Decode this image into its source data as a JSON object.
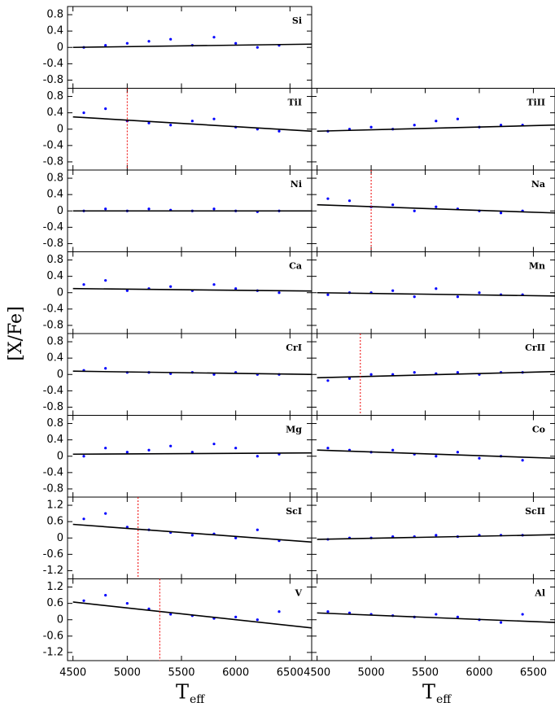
{
  "ylabel": "[X/Fe]",
  "xlabel": {
    "base": "T",
    "sub": "eff"
  },
  "chart_data": [
    {
      "type": "scatter",
      "label": "Si",
      "color": "#0000ff",
      "xlim": [
        4450,
        6700
      ],
      "ylim": [
        -1,
        1
      ],
      "xticks": [
        4500,
        5000,
        5500,
        6000,
        6500
      ],
      "yticks": [
        -0.8,
        -0.4,
        0,
        0.4,
        0.8
      ],
      "x": [
        4600,
        4800,
        5000,
        5200,
        5400,
        5600,
        5800,
        6000,
        6200,
        6400
      ],
      "y": [
        0.0,
        0.05,
        0.1,
        0.15,
        0.2,
        0.05,
        0.25,
        0.1,
        0.0,
        0.05
      ],
      "fit": {
        "x": [
          4500,
          6700
        ],
        "y": [
          0.0,
          0.08
        ]
      }
    },
    {
      "type": "scatter",
      "label": "TiI",
      "color": "#0000ff",
      "xlim": [
        4450,
        6700
      ],
      "ylim": [
        -1,
        1
      ],
      "xticks": [
        4500,
        5000,
        5500,
        6000,
        6500
      ],
      "yticks": [
        -0.8,
        -0.4,
        0,
        0.4,
        0.8
      ],
      "x": [
        4600,
        4800,
        5000,
        5200,
        5400,
        5600,
        5800,
        6000,
        6200,
        6400
      ],
      "y": [
        0.4,
        0.5,
        0.2,
        0.15,
        0.1,
        0.2,
        0.25,
        0.05,
        0.0,
        -0.05
      ],
      "fit": {
        "x": [
          4500,
          6700
        ],
        "y": [
          0.3,
          -0.05
        ]
      },
      "vline": 5000
    },
    {
      "type": "scatter",
      "label": "Ni",
      "color": "#0000ff",
      "xlim": [
        4450,
        6700
      ],
      "ylim": [
        -1,
        1
      ],
      "xticks": [
        4500,
        5000,
        5500,
        6000,
        6500
      ],
      "yticks": [
        -0.8,
        -0.4,
        0,
        0.4,
        0.8
      ],
      "x": [
        4600,
        4800,
        5000,
        5200,
        5400,
        5600,
        5800,
        6000,
        6200,
        6400
      ],
      "y": [
        0.0,
        0.05,
        0.0,
        0.05,
        0.02,
        0.0,
        0.05,
        0.0,
        -0.02,
        0.0
      ],
      "fit": {
        "x": [
          4500,
          6700
        ],
        "y": [
          0.0,
          0.0
        ]
      }
    },
    {
      "type": "scatter",
      "label": "Ca",
      "color": "#0000ff",
      "xlim": [
        4450,
        6700
      ],
      "ylim": [
        -1,
        1
      ],
      "xticks": [
        4500,
        5000,
        5500,
        6000,
        6500
      ],
      "yticks": [
        -0.8,
        -0.4,
        0,
        0.4,
        0.8
      ],
      "x": [
        4600,
        4800,
        5000,
        5200,
        5400,
        5600,
        5800,
        6000,
        6200,
        6400
      ],
      "y": [
        0.2,
        0.3,
        0.05,
        0.1,
        0.15,
        0.05,
        0.2,
        0.1,
        0.05,
        0.0
      ],
      "fit": {
        "x": [
          4500,
          6700
        ],
        "y": [
          0.1,
          0.04
        ]
      }
    },
    {
      "type": "scatter",
      "label": "CrI",
      "color": "#0000ff",
      "xlim": [
        4450,
        6700
      ],
      "ylim": [
        -1,
        1
      ],
      "xticks": [
        4500,
        5000,
        5500,
        6000,
        6500
      ],
      "yticks": [
        -0.8,
        -0.4,
        0,
        0.4,
        0.8
      ],
      "x": [
        4600,
        4800,
        5000,
        5200,
        5400,
        5600,
        5800,
        6000,
        6200,
        6400
      ],
      "y": [
        0.1,
        0.15,
        0.05,
        0.05,
        0.02,
        0.05,
        0.0,
        0.05,
        0.0,
        0.0
      ],
      "fit": {
        "x": [
          4500,
          6700
        ],
        "y": [
          0.08,
          0.0
        ]
      }
    },
    {
      "type": "scatter",
      "label": "Mg",
      "color": "#0000ff",
      "xlim": [
        4450,
        6700
      ],
      "ylim": [
        -1,
        1
      ],
      "xticks": [
        4500,
        5000,
        5500,
        6000,
        6500
      ],
      "yticks": [
        -0.8,
        -0.4,
        0,
        0.4,
        0.8
      ],
      "x": [
        4600,
        4800,
        5000,
        5200,
        5400,
        5600,
        5800,
        6000,
        6200,
        6400
      ],
      "y": [
        0.0,
        0.2,
        0.1,
        0.15,
        0.25,
        0.1,
        0.3,
        0.2,
        0.0,
        0.05
      ],
      "fit": {
        "x": [
          4500,
          6700
        ],
        "y": [
          0.05,
          0.08
        ]
      }
    },
    {
      "type": "scatter",
      "label": "ScI",
      "color": "#0000ff",
      "xlim": [
        4450,
        6700
      ],
      "ylim": [
        -1.5,
        1.5
      ],
      "xticks": [
        4500,
        5000,
        5500,
        6000,
        6500
      ],
      "yticks": [
        -1.2,
        -0.6,
        0,
        0.6,
        1.2
      ],
      "x": [
        4600,
        4800,
        5000,
        5200,
        5400,
        5600,
        5800,
        6000,
        6200,
        6400
      ],
      "y": [
        0.7,
        0.9,
        0.4,
        0.3,
        0.2,
        0.1,
        0.15,
        0.0,
        0.3,
        -0.1
      ],
      "fit": {
        "x": [
          4500,
          6700
        ],
        "y": [
          0.5,
          -0.15
        ]
      },
      "vline": 5100
    },
    {
      "type": "scatter",
      "label": "V",
      "color": "#0000ff",
      "xlim": [
        4450,
        6700
      ],
      "ylim": [
        -1.5,
        1.5
      ],
      "xticks": [
        4500,
        5000,
        5500,
        6000,
        6500
      ],
      "yticks": [
        -1.2,
        -0.6,
        0,
        0.6,
        1.2
      ],
      "x": [
        4600,
        4800,
        5000,
        5200,
        5400,
        5600,
        5800,
        6000,
        6200,
        6400
      ],
      "y": [
        0.7,
        0.9,
        0.6,
        0.4,
        0.2,
        0.15,
        0.05,
        0.1,
        0.0,
        0.3
      ],
      "fit": {
        "x": [
          4500,
          6700
        ],
        "y": [
          0.65,
          -0.3
        ]
      },
      "vline": 5300
    },
    {
      "type": "scatter",
      "label": "TiII",
      "color": "#0000ff",
      "xlim": [
        4450,
        6700
      ],
      "ylim": [
        -1,
        1
      ],
      "xticks": [
        4500,
        5000,
        5500,
        6000,
        6500
      ],
      "yticks": [
        -0.8,
        -0.4,
        0,
        0.4,
        0.8
      ],
      "x": [
        4600,
        4800,
        5000,
        5200,
        5400,
        5600,
        5800,
        6000,
        6200,
        6400
      ],
      "y": [
        -0.05,
        0.0,
        0.05,
        0.0,
        0.1,
        0.2,
        0.25,
        0.05,
        0.1,
        0.1
      ],
      "fit": {
        "x": [
          4500,
          6700
        ],
        "y": [
          -0.05,
          0.1
        ]
      }
    },
    {
      "type": "scatter",
      "label": "Na",
      "color": "#0000ff",
      "xlim": [
        4450,
        6700
      ],
      "ylim": [
        -1,
        1
      ],
      "xticks": [
        4500,
        5000,
        5500,
        6000,
        6500
      ],
      "yticks": [
        -0.8,
        -0.4,
        0,
        0.4,
        0.8
      ],
      "x": [
        4600,
        4800,
        5000,
        5200,
        5400,
        5600,
        5800,
        6000,
        6200,
        6400
      ],
      "y": [
        0.3,
        0.25,
        0.1,
        0.15,
        0.0,
        0.1,
        0.05,
        0.0,
        -0.05,
        0.0
      ],
      "fit": {
        "x": [
          4500,
          6700
        ],
        "y": [
          0.15,
          -0.05
        ]
      },
      "vline": 5000
    },
    {
      "type": "scatter",
      "label": "Mn",
      "color": "#0000ff",
      "xlim": [
        4450,
        6700
      ],
      "ylim": [
        -1,
        1
      ],
      "xticks": [
        4500,
        5000,
        5500,
        6000,
        6500
      ],
      "yticks": [
        -0.8,
        -0.4,
        0,
        0.4,
        0.8
      ],
      "x": [
        4600,
        4800,
        5000,
        5200,
        5400,
        5600,
        5800,
        6000,
        6200,
        6400
      ],
      "y": [
        -0.05,
        0.0,
        0.0,
        0.05,
        -0.1,
        0.1,
        -0.1,
        0.0,
        -0.05,
        -0.05
      ],
      "fit": {
        "x": [
          4500,
          6700
        ],
        "y": [
          0.0,
          -0.08
        ]
      }
    },
    {
      "type": "scatter",
      "label": "CrII",
      "color": "#0000ff",
      "xlim": [
        4450,
        6700
      ],
      "ylim": [
        -1,
        1
      ],
      "xticks": [
        4500,
        5000,
        5500,
        6000,
        6500
      ],
      "yticks": [
        -0.8,
        -0.4,
        0,
        0.4,
        0.8
      ],
      "x": [
        4600,
        4800,
        5000,
        5200,
        5400,
        5600,
        5800,
        6000,
        6200,
        6400
      ],
      "y": [
        -0.15,
        -0.1,
        0.0,
        0.0,
        0.05,
        0.02,
        0.05,
        0.0,
        0.05,
        0.05
      ],
      "fit": {
        "x": [
          4500,
          6700
        ],
        "y": [
          -0.08,
          0.07
        ]
      },
      "vline": 4900
    },
    {
      "type": "scatter",
      "label": "Co",
      "color": "#0000ff",
      "xlim": [
        4450,
        6700
      ],
      "ylim": [
        -1,
        1
      ],
      "xticks": [
        4500,
        5000,
        5500,
        6000,
        6500
      ],
      "yticks": [
        -0.8,
        -0.4,
        0,
        0.4,
        0.8
      ],
      "x": [
        4600,
        4800,
        5000,
        5200,
        5400,
        5600,
        5800,
        6000,
        6200,
        6400
      ],
      "y": [
        0.2,
        0.15,
        0.1,
        0.15,
        0.05,
        0.0,
        0.1,
        -0.05,
        0.0,
        -0.1
      ],
      "fit": {
        "x": [
          4500,
          6700
        ],
        "y": [
          0.15,
          -0.05
        ]
      }
    },
    {
      "type": "scatter",
      "label": "ScII",
      "color": "#0000ff",
      "xlim": [
        4450,
        6700
      ],
      "ylim": [
        -1.5,
        1.5
      ],
      "xticks": [
        4500,
        5000,
        5500,
        6000,
        6500
      ],
      "yticks": [
        -1.2,
        -0.6,
        0,
        0.6,
        1.2
      ],
      "x": [
        4600,
        4800,
        5000,
        5200,
        5400,
        5600,
        5800,
        6000,
        6200,
        6400
      ],
      "y": [
        -0.05,
        0.0,
        0.0,
        0.05,
        0.05,
        0.1,
        0.05,
        0.1,
        0.1,
        0.1
      ],
      "fit": {
        "x": [
          4500,
          6700
        ],
        "y": [
          -0.05,
          0.12
        ]
      }
    },
    {
      "type": "scatter",
      "label": "Al",
      "color": "#0000ff",
      "xlim": [
        4450,
        6700
      ],
      "ylim": [
        -1.5,
        1.5
      ],
      "xticks": [
        4500,
        5000,
        5500,
        6000,
        6500
      ],
      "yticks": [
        -1.2,
        -0.6,
        0,
        0.6,
        1.2
      ],
      "x": [
        4600,
        4800,
        5000,
        5200,
        5400,
        5600,
        5800,
        6000,
        6200,
        6400
      ],
      "y": [
        0.3,
        0.25,
        0.2,
        0.15,
        0.1,
        0.2,
        0.1,
        0.0,
        -0.1,
        0.2
      ],
      "fit": {
        "x": [
          4500,
          6700
        ],
        "y": [
          0.25,
          -0.1
        ]
      }
    }
  ]
}
